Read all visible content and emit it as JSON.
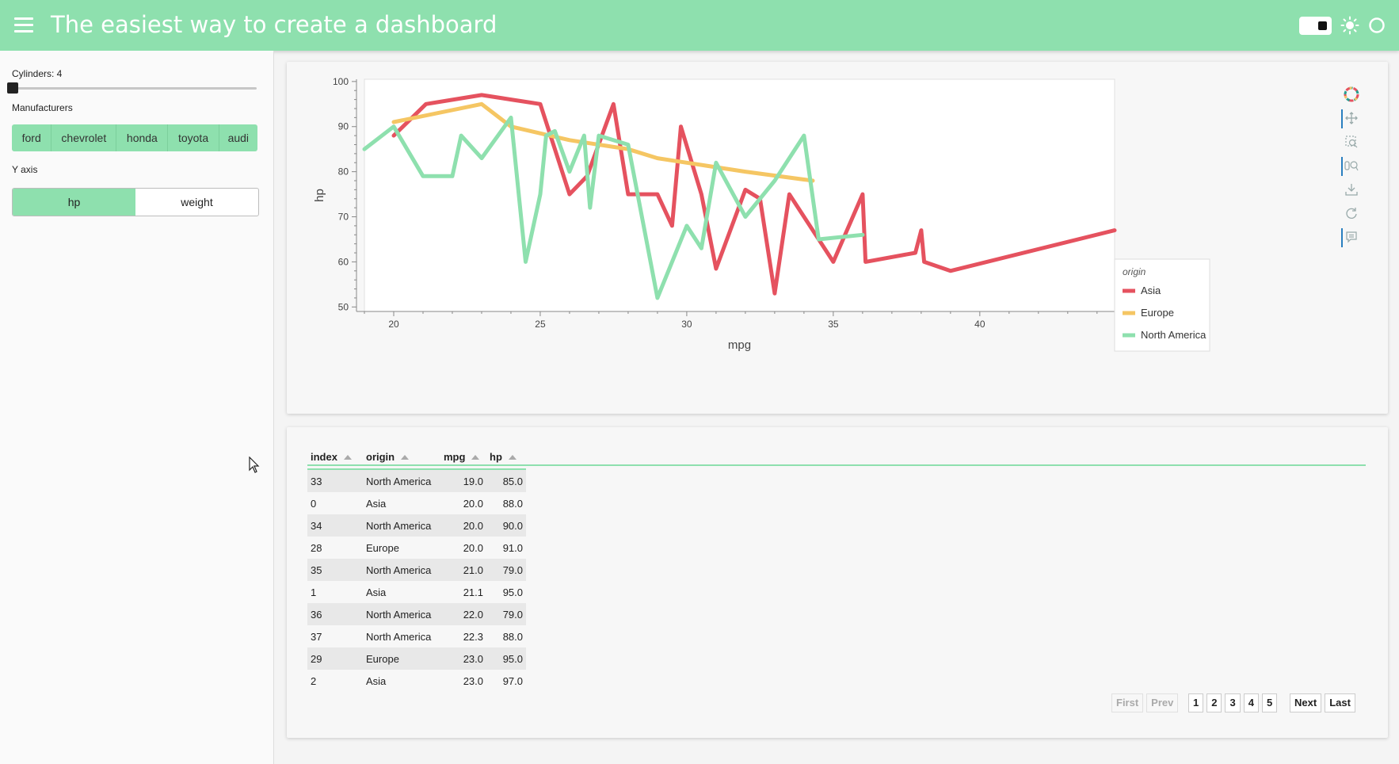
{
  "header": {
    "title": "The easiest way to create a dashboard"
  },
  "sidebar": {
    "cylinders_label": "Cylinders: 4",
    "cylinders_value": 4,
    "manufacturers_label": "Manufacturers",
    "manufacturers": [
      "ford",
      "chevrolet",
      "honda",
      "toyota",
      "audi"
    ],
    "yaxis_label": "Y axis",
    "yaxis_options": [
      "hp",
      "weight"
    ],
    "yaxis_selected": "hp"
  },
  "chart_data": {
    "type": "line",
    "xlabel": "mpg",
    "ylabel": "hp",
    "xlim": [
      19,
      44.6
    ],
    "ylim": [
      49,
      100.5
    ],
    "xticks": [
      20,
      25,
      30,
      35,
      40
    ],
    "yticks": [
      50,
      60,
      70,
      80,
      90,
      100
    ],
    "legend_title": "origin",
    "legend_position": "right",
    "series": [
      {
        "name": "Asia",
        "color": "#e5525f",
        "x": [
          20,
          21.1,
          23,
          24,
          25,
          26,
          26.6,
          27.5,
          28,
          29,
          29.5,
          29.8,
          30.5,
          31,
          32,
          32.5,
          33,
          33.5,
          34,
          35,
          36,
          36.1,
          37.8,
          38,
          38.1,
          39,
          44.6
        ],
        "y": [
          88,
          95,
          97,
          96,
          95,
          75,
          79,
          95,
          75,
          75,
          68,
          90,
          75,
          58.5,
          76,
          74,
          53,
          75,
          70,
          60,
          75,
          60,
          62,
          67,
          60,
          58,
          67
        ]
      },
      {
        "name": "Europe",
        "color": "#f5c663",
        "x": [
          20,
          23,
          24,
          26,
          28,
          29,
          30,
          32,
          34.3
        ],
        "y": [
          91,
          95,
          90,
          87,
          85,
          83,
          82,
          80,
          78
        ]
      },
      {
        "name": "North America",
        "color": "#8ee0ae",
        "x": [
          19,
          20,
          21,
          22,
          22.3,
          23,
          24,
          24.5,
          25,
          25.2,
          25.5,
          26,
          26.5,
          26.7,
          27,
          28,
          29,
          30,
          30.5,
          31,
          32,
          33,
          34,
          34.5,
          36
        ],
        "y": [
          85,
          90,
          79,
          79,
          88,
          83,
          92,
          60,
          75,
          88,
          89,
          80,
          88,
          72,
          88,
          86,
          52,
          68,
          63,
          82,
          70,
          78,
          88,
          65,
          66
        ]
      }
    ]
  },
  "table": {
    "columns": [
      "index",
      "origin",
      "mpg",
      "hp"
    ],
    "rows": [
      [
        "33",
        "North America",
        "19.0",
        "85.0"
      ],
      [
        "0",
        "Asia",
        "20.0",
        "88.0"
      ],
      [
        "34",
        "North America",
        "20.0",
        "90.0"
      ],
      [
        "28",
        "Europe",
        "20.0",
        "91.0"
      ],
      [
        "35",
        "North America",
        "21.0",
        "79.0"
      ],
      [
        "1",
        "Asia",
        "21.1",
        "95.0"
      ],
      [
        "36",
        "North America",
        "22.0",
        "79.0"
      ],
      [
        "37",
        "North America",
        "22.3",
        "88.0"
      ],
      [
        "29",
        "Europe",
        "23.0",
        "95.0"
      ],
      [
        "2",
        "Asia",
        "23.0",
        "97.0"
      ]
    ]
  },
  "pagination": {
    "first": "First",
    "prev": "Prev",
    "pages": [
      "1",
      "2",
      "3",
      "4",
      "5"
    ],
    "next": "Next",
    "last": "Last"
  },
  "colors": {
    "accent": "#8ee0ae"
  }
}
